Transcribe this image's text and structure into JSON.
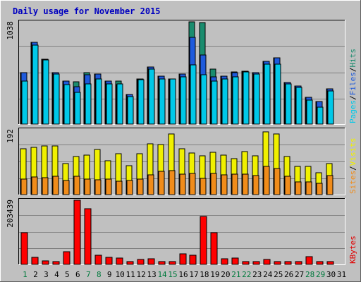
{
  "chart_data": {
    "type": "bar",
    "title": "Daily usage for November 2015",
    "categories": [
      "1",
      "2",
      "3",
      "4",
      "5",
      "6",
      "7",
      "8",
      "9",
      "10",
      "11",
      "12",
      "13",
      "14",
      "15",
      "16",
      "17",
      "18",
      "19",
      "20",
      "21",
      "22",
      "23",
      "24",
      "25",
      "26",
      "27",
      "28",
      "29",
      "30",
      "31"
    ],
    "weekend_days": [
      "1",
      "7",
      "8",
      "14",
      "15",
      "21",
      "22",
      "28",
      "29"
    ],
    "panels": [
      {
        "id": "top",
        "ylabel_max": "1038",
        "ymax": 1038,
        "legend": [
          {
            "text": "Pages",
            "color": "#00c8e8"
          },
          {
            "text": "Files",
            "color": "#1e5adc"
          },
          {
            "text": "Hits",
            "color": "#1a8c6e"
          }
        ],
        "series": [
          {
            "name": "Hits",
            "color": "#1a8c6e",
            "values": [
              520,
              830,
              660,
              520,
              440,
              430,
              520,
              510,
              440,
              440,
              300,
              460,
              580,
              490,
              460,
              510,
              1038,
              1030,
              560,
              490,
              530,
              540,
              520,
              640,
              670,
              420,
              390,
              270,
              230,
              360,
              null
            ]
          },
          {
            "name": "Files",
            "color": "#1e5adc",
            "values": [
              520,
              830,
              660,
              520,
              440,
              380,
              500,
              510,
              440,
              400,
              300,
              460,
              580,
              490,
              460,
              510,
              880,
              700,
              480,
              490,
              520,
              540,
              520,
              640,
              670,
              420,
              390,
              270,
              230,
              360,
              null
            ]
          },
          {
            "name": "Pages",
            "color": "#00c8e8",
            "values": [
              440,
              800,
              650,
              510,
              400,
              320,
              410,
              460,
              410,
              410,
              280,
              450,
              560,
              460,
              460,
              480,
              600,
              500,
              440,
              460,
              480,
              530,
              510,
              610,
              610,
              410,
              370,
              240,
              170,
              340,
              null
            ]
          }
        ]
      },
      {
        "id": "middle",
        "ylabel_max": "192",
        "ymax": 192,
        "legend": [
          {
            "text": "Sites",
            "color": "#f08c1a"
          },
          {
            "text": "Visits",
            "color": "#f0f000"
          }
        ],
        "series": [
          {
            "name": "Visits",
            "color": "#f0f000",
            "values": [
              135,
              139,
              143,
              144,
              92,
              113,
              116,
              134,
              100,
              121,
              86,
              121,
              150,
              148,
              180,
              135,
              123,
              114,
              125,
              117,
              107,
              128,
              114,
              185,
              179,
              113,
              83,
              84,
              64,
              92,
              null
            ]
          },
          {
            "name": "Sites",
            "color": "#f08c1a",
            "values": [
              46,
              53,
              51,
              54,
              41,
              55,
              46,
              44,
              45,
              40,
              42,
              46,
              58,
              68,
              71,
              61,
              62,
              47,
              62,
              59,
              60,
              61,
              57,
              83,
              77,
              55,
              37,
              37,
              34,
              57,
              null
            ]
          }
        ]
      },
      {
        "id": "bottom",
        "ylabel_max": "203439",
        "ymax": 203439,
        "legend": [
          {
            "text": "KBytes",
            "color": "#e00000"
          }
        ],
        "series": [
          {
            "name": "KBytes",
            "color": "#ff0000",
            "values": [
              100000,
              22000,
              12000,
              10000,
              40000,
              203439,
              177000,
              28000,
              22000,
              21000,
              10000,
              15000,
              17000,
              10000,
              10000,
              33000,
              29000,
              152000,
              100000,
              17000,
              20000,
              10000,
              10000,
              15000,
              10000,
              10000,
              10000,
              24000,
              10000,
              8000,
              null
            ]
          }
        ]
      }
    ]
  }
}
